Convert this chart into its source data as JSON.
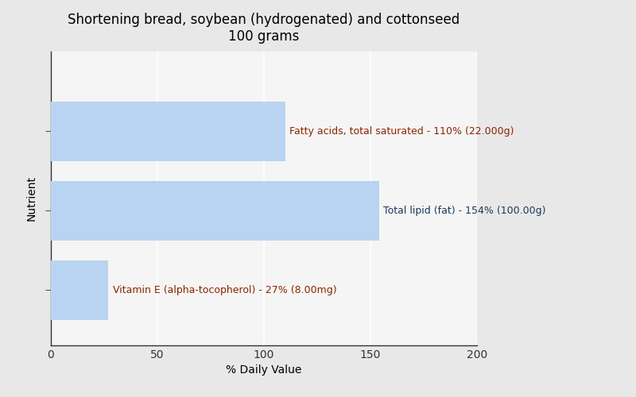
{
  "title_line1": "Shortening bread, soybean (hydrogenated) and cottonseed",
  "title_line2": "100 grams",
  "xlabel": "% Daily Value",
  "ylabel": "Nutrient",
  "xlim": [
    0,
    200
  ],
  "xticks": [
    0,
    50,
    100,
    150,
    200
  ],
  "background_color": "#e8e8e8",
  "plot_background_color": "#f5f5f5",
  "bar_color": "#b8d4f0",
  "bars": [
    {
      "label": "Fatty acids, total saturated - 110% (22.000g)",
      "value": 110,
      "label_color": "#8b2500"
    },
    {
      "label": "Total lipid (fat) - 154% (100.00g)",
      "value": 154,
      "label_color": "#1a3a5c"
    },
    {
      "label": "Vitamin E (alpha-tocopherol) - 27% (8.00mg)",
      "value": 27,
      "label_color": "#8b2500"
    }
  ],
  "title_fontsize": 12,
  "axis_label_fontsize": 10,
  "tick_fontsize": 10,
  "bar_label_fontsize": 9,
  "grid_color": "#ffffff",
  "grid_linewidth": 1.2
}
